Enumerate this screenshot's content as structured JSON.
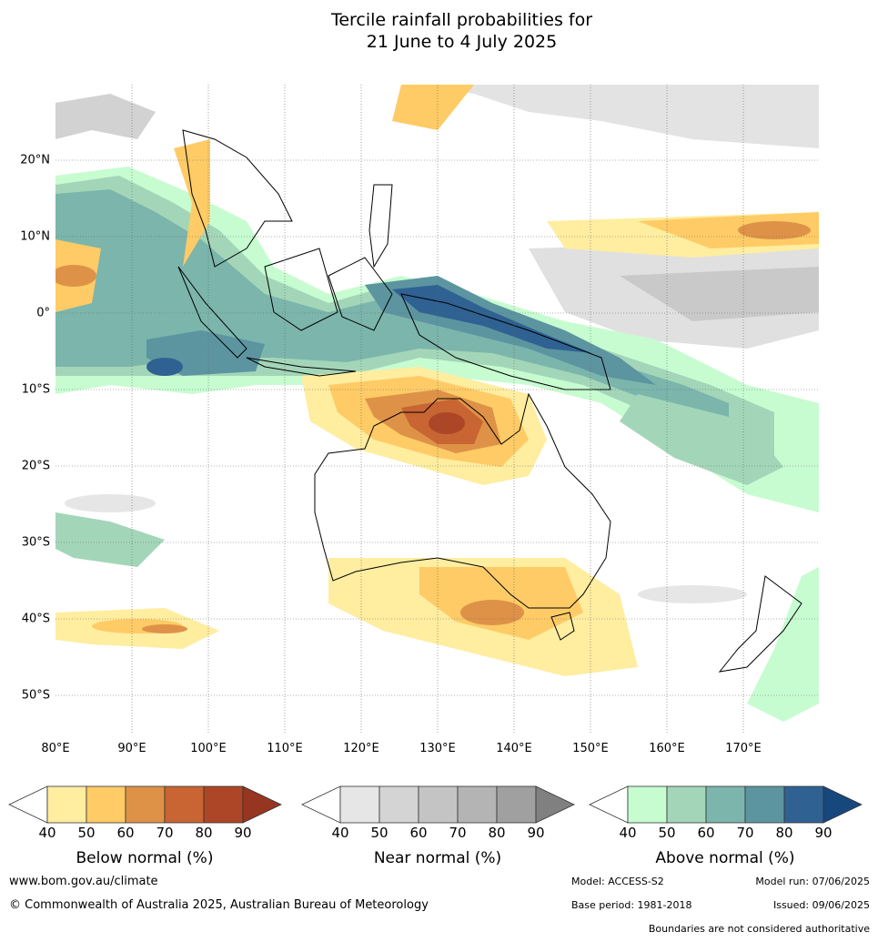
{
  "title_line1": "Tercile rainfall probabilities for",
  "title_line2": "21 June to 4 July 2025",
  "lat_labels": [
    "20°N",
    "10°N",
    "0°",
    "10°S",
    "20°S",
    "30°S",
    "40°S",
    "50°S"
  ],
  "lon_labels": [
    "80°E",
    "90°E",
    "100°E",
    "110°E",
    "120°E",
    "130°E",
    "140°E",
    "150°E",
    "160°E",
    "170°E"
  ],
  "colorbars": [
    {
      "title": "Below normal (%)",
      "ticks": [
        "40",
        "50",
        "60",
        "70",
        "80",
        "90"
      ],
      "colors": [
        "#ffeda0",
        "#fecb66",
        "#de9247",
        "#c96532",
        "#ad4627",
        "#973620"
      ]
    },
    {
      "title": "Near normal (%)",
      "ticks": [
        "40",
        "50",
        "60",
        "70",
        "80",
        "90"
      ],
      "colors": [
        "#e6e6e6",
        "#d4d4d4",
        "#c4c4c4",
        "#b4b4b4",
        "#a0a0a0",
        "#808080"
      ]
    },
    {
      "title": "Above normal (%)",
      "ticks": [
        "40",
        "50",
        "60",
        "70",
        "80",
        "90"
      ],
      "colors": [
        "#c7fcd1",
        "#a3d6b8",
        "#7bb5ac",
        "#5c95a0",
        "#2f6292",
        "#16487e"
      ]
    }
  ],
  "footer": {
    "website": "www.bom.gov.au/climate",
    "copyright": "© Commonwealth of Australia 2025, Australian Bureau of Meteorology",
    "model": "Model: ACCESS-S2",
    "model_run": "Model run: 07/06/2025",
    "base_period": "Base period: 1981-2018",
    "issued": "Issued: 09/06/2025",
    "disclaimer": "Boundaries are not considered authoritative"
  }
}
